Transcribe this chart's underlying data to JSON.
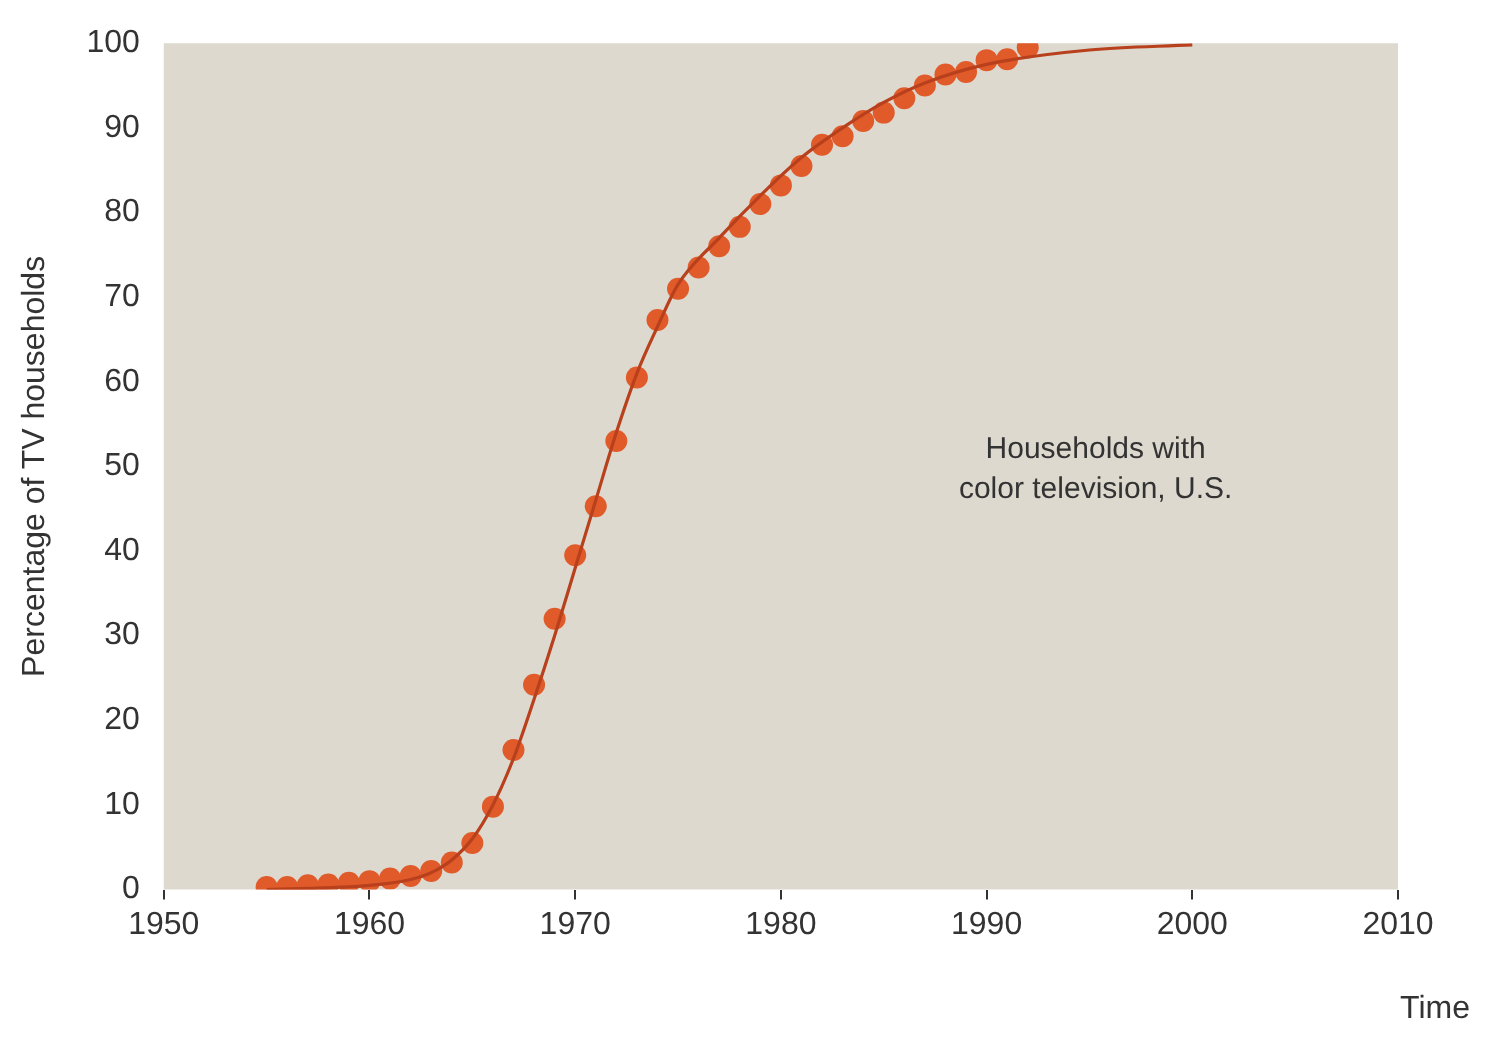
{
  "chart_data": {
    "type": "scatter",
    "xlabel": "Time",
    "ylabel": "Percentage of TV households",
    "xlim": [
      1950,
      2010
    ],
    "xticks": [
      1950,
      1960,
      1970,
      1980,
      1990,
      2000,
      2010
    ],
    "ylim": [
      0,
      100
    ],
    "yticks": [
      0,
      10,
      20,
      30,
      40,
      50,
      60,
      70,
      80,
      90,
      100
    ],
    "grid": false,
    "legend": false,
    "annotations": [
      "Households with\ncolor television, U.S."
    ],
    "series": [
      {
        "marker": "circle",
        "color": "#e05a2a",
        "x": [
          1955,
          1956,
          1957,
          1958,
          1959,
          1960,
          1961,
          1962,
          1963,
          1964,
          1965,
          1966,
          1967,
          1968,
          1969,
          1970,
          1971,
          1972,
          1973,
          1974,
          1975,
          1976,
          1977,
          1978,
          1979,
          1980,
          1981,
          1982,
          1983,
          1984,
          1985,
          1986,
          1987,
          1988,
          1989,
          1990,
          1991,
          1992
        ],
        "values": [
          0.3,
          0.3,
          0.5,
          0.6,
          0.8,
          1,
          1.3,
          1.6,
          2.2,
          3.2,
          5.5,
          9.8,
          16.5,
          24.2,
          32,
          39.5,
          45.3,
          53,
          60.5,
          67.3,
          71,
          73.5,
          76,
          78.3,
          81,
          83.2,
          85.5,
          88,
          89,
          90.8,
          91.8,
          93.5,
          95,
          96.3,
          96.6,
          98,
          98.1,
          99.5
        ]
      },
      {
        "type": "line",
        "marker": "none",
        "color": "#b8401c",
        "x": [
          1955,
          1960,
          1962,
          1963,
          1964,
          1965,
          1966,
          1967,
          1968,
          1969,
          1970,
          1971,
          1972,
          1973,
          1974,
          1975,
          1977,
          1979,
          1981,
          1983,
          1985,
          1987,
          1990,
          1995,
          2000
        ],
        "values": [
          0,
          0.5,
          1.2,
          2,
          3.5,
          6,
          10,
          15.5,
          22.5,
          30,
          38,
          46,
          54,
          61,
          66.5,
          71.5,
          77,
          82,
          86.5,
          90,
          93,
          95.3,
          97.5,
          99.2,
          99.8
        ]
      }
    ]
  }
}
